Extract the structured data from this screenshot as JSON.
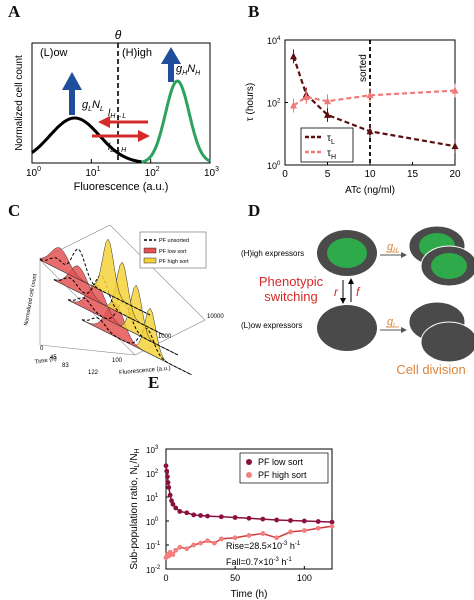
{
  "panels": {
    "A": {
      "label": "A"
    },
    "B": {
      "label": "B"
    },
    "C": {
      "label": "C"
    },
    "D": {
      "label": "D"
    },
    "E": {
      "label": "E"
    }
  },
  "chart_data": [
    {
      "panel": "A",
      "type": "line",
      "xlabel": "Fluorescence (a.u.)",
      "ylabel": "Normalized cell count",
      "xscale": "log",
      "xlim": [
        1,
        1000
      ],
      "xticks": [
        "10",
        "10",
        "10",
        "10"
      ],
      "xtick_exp": [
        "0",
        "1",
        "2",
        "3"
      ],
      "threshold_label": "θ",
      "threshold_x": 70,
      "low_label": "(L)ow",
      "high_label": "(H)igh",
      "low_growth_label": "g",
      "low_growth_sub": "L",
      "low_growth_label2": "N",
      "low_growth_sub2": "L",
      "high_growth_label": "g",
      "high_growth_sub": "H",
      "high_growth_label2": "N",
      "high_growth_sub2": "H",
      "switch_hl": "l",
      "switch_hl_sub": "H→L",
      "switch_lh": "l",
      "switch_lh_sub": "L→H",
      "colors": {
        "low": "#000000",
        "high": "#2ca25f",
        "up_arrow": "#1f4e9c",
        "switch_arrow": "#d62a2a"
      }
    },
    {
      "panel": "B",
      "type": "line",
      "xlabel": "ATc (ng/ml)",
      "ylabel": "τ (hours)",
      "yscale": "log",
      "xlim": [
        0,
        20
      ],
      "ylim": [
        1,
        10000
      ],
      "xticks": [
        "0",
        "5",
        "10",
        "15",
        "20"
      ],
      "yticks_base": [
        "10",
        "10",
        "10"
      ],
      "yticks_exp": [
        "0",
        "2",
        "4"
      ],
      "sorted_label": "sorted",
      "sorted_x": 10,
      "series": [
        {
          "name": "τ",
          "sub": "L",
          "color": "#5c0f0f",
          "x": [
            1,
            2.5,
            5,
            10,
            20
          ],
          "y": [
            3000,
            180,
            40,
            12,
            4
          ]
        },
        {
          "name": "τ",
          "sub": "H",
          "color": "#f07a7a",
          "x": [
            1,
            2.5,
            5,
            10,
            20
          ],
          "y": [
            80,
            150,
            110,
            170,
            240
          ]
        }
      ]
    },
    {
      "panel": "C",
      "type": "area",
      "xlabel": "Fluorescence (a.u.)",
      "ylabel": "Normalized cell count",
      "zlabel": "Time (h)",
      "xticks": [
        "100",
        "1000",
        "10000"
      ],
      "time_ticks": [
        "0",
        "45",
        "83",
        "122"
      ],
      "legend": [
        "PF unsorted",
        "PF low sort",
        "PF high sort"
      ],
      "colors": {
        "low": "#e45353",
        "high": "#f3d23a",
        "unsorted": "#000000"
      }
    },
    {
      "panel": "E",
      "type": "scatter",
      "xlabel": "Time (h)",
      "ylabel": "Sub-population ratio, N",
      "ylabel_sub1": "L",
      "ylabel_mid": "/N",
      "ylabel_sub2": "H",
      "yscale": "log",
      "xlim": [
        0,
        120
      ],
      "ylim": [
        0.01,
        1000
      ],
      "xticks": [
        "0",
        "50",
        "100"
      ],
      "yticks_base": [
        "10",
        "10",
        "10",
        "10",
        "10",
        "10"
      ],
      "yticks_exp": [
        "-2",
        "-1",
        "0",
        "1",
        "2",
        "3"
      ],
      "rise_text": "Rise=28.5×10",
      "rise_exp": "-3",
      "rise_unit": " h",
      "rise_unit_exp": "-1",
      "fall_text": "Fall=0.7×10",
      "fall_exp": "-3",
      "fall_unit": " h",
      "fall_unit_exp": "-1",
      "series": [
        {
          "name": "PF low sort",
          "color": "#8b0f3f",
          "x": [
            0,
            0.5,
            1,
            1.5,
            2,
            3,
            4,
            5,
            7,
            10,
            15,
            20,
            25,
            30,
            40,
            50,
            60,
            70,
            80,
            90,
            100,
            110,
            120
          ],
          "y": [
            200,
            120,
            70,
            40,
            25,
            12,
            7,
            5,
            3.5,
            2.5,
            2.2,
            1.8,
            1.7,
            1.6,
            1.5,
            1.4,
            1.3,
            1.2,
            1.1,
            1.05,
            1.0,
            0.95,
            0.9
          ]
        },
        {
          "name": "PF high sort",
          "color": "#f47f7f",
          "x": [
            0,
            1,
            2,
            3,
            5,
            7,
            10,
            15,
            20,
            25,
            30,
            35,
            40,
            50,
            60,
            70,
            80,
            90,
            100,
            110,
            120
          ],
          "y": [
            0.03,
            0.04,
            0.035,
            0.05,
            0.04,
            0.06,
            0.08,
            0.07,
            0.1,
            0.12,
            0.15,
            0.12,
            0.18,
            0.2,
            0.25,
            0.3,
            0.2,
            0.35,
            0.4,
            0.5,
            0.6
          ]
        }
      ]
    }
  ],
  "diagram": {
    "high_expressors": "(H)igh expressors",
    "low_expressors": "(L)ow expressors",
    "phenotypic": "Phenotypic",
    "switching": "switching",
    "r_label": "r",
    "f_label": "f",
    "gh_label": "g",
    "gh_sub": "H",
    "gl_label": "g",
    "gl_sub": "L",
    "cell_division": "Cell division",
    "colors": {
      "cell_outer": "#4a4a4a",
      "cell_inner": "#2faa4a",
      "switching": "#d62a2a",
      "division": "#d9853b"
    }
  }
}
